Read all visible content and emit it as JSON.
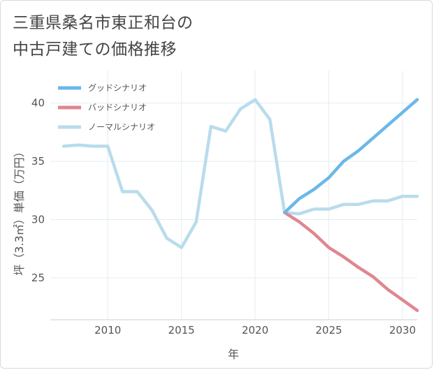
{
  "title_line1": "三重県桑名市東正和台の",
  "title_line2": "中古戸建ての価格推移",
  "chart_data": {
    "type": "line",
    "title": "三重県桑名市東正和台の中古戸建ての価格推移",
    "xlabel": "年",
    "ylabel": "坪（3.3㎡）単価（万円）",
    "xlim": [
      2006.1,
      2031
    ],
    "ylim": [
      21.4,
      42.8
    ],
    "xticks": [
      2010,
      2015,
      2020,
      2025,
      2030
    ],
    "yticks": [
      25,
      30,
      35,
      40
    ],
    "grid": true,
    "legend_position": "top-left",
    "series": [
      {
        "name": "グッドシナリオ",
        "color": "#6bb8e8",
        "x": [
          2022,
          2023,
          2024,
          2025,
          2026,
          2027,
          2028,
          2029,
          2030,
          2031
        ],
        "y": [
          30.6,
          31.8,
          32.6,
          33.6,
          35.0,
          35.9,
          37.0,
          38.1,
          39.2,
          40.3
        ]
      },
      {
        "name": "バッドシナリオ",
        "color": "#e0868f",
        "x": [
          2022,
          2023,
          2024,
          2025,
          2026,
          2027,
          2028,
          2029,
          2030,
          2031
        ],
        "y": [
          30.6,
          29.8,
          28.8,
          27.6,
          26.8,
          25.9,
          25.1,
          24.0,
          23.1,
          22.2
        ]
      },
      {
        "name": "ノーマルシナリオ",
        "color": "#b9dcec",
        "x": [
          2007,
          2008,
          2009,
          2010,
          2011,
          2012,
          2013,
          2014,
          2015,
          2016,
          2017,
          2018,
          2019,
          2020,
          2021,
          2022,
          2023,
          2024,
          2025,
          2026,
          2027,
          2028,
          2029,
          2030,
          2031
        ],
        "y": [
          36.3,
          36.4,
          36.3,
          36.3,
          32.4,
          32.4,
          30.8,
          28.4,
          27.6,
          29.8,
          38.0,
          37.6,
          39.5,
          40.3,
          38.6,
          30.6,
          30.5,
          30.9,
          30.9,
          31.3,
          31.3,
          31.6,
          31.6,
          32.0,
          32.0
        ]
      }
    ]
  }
}
